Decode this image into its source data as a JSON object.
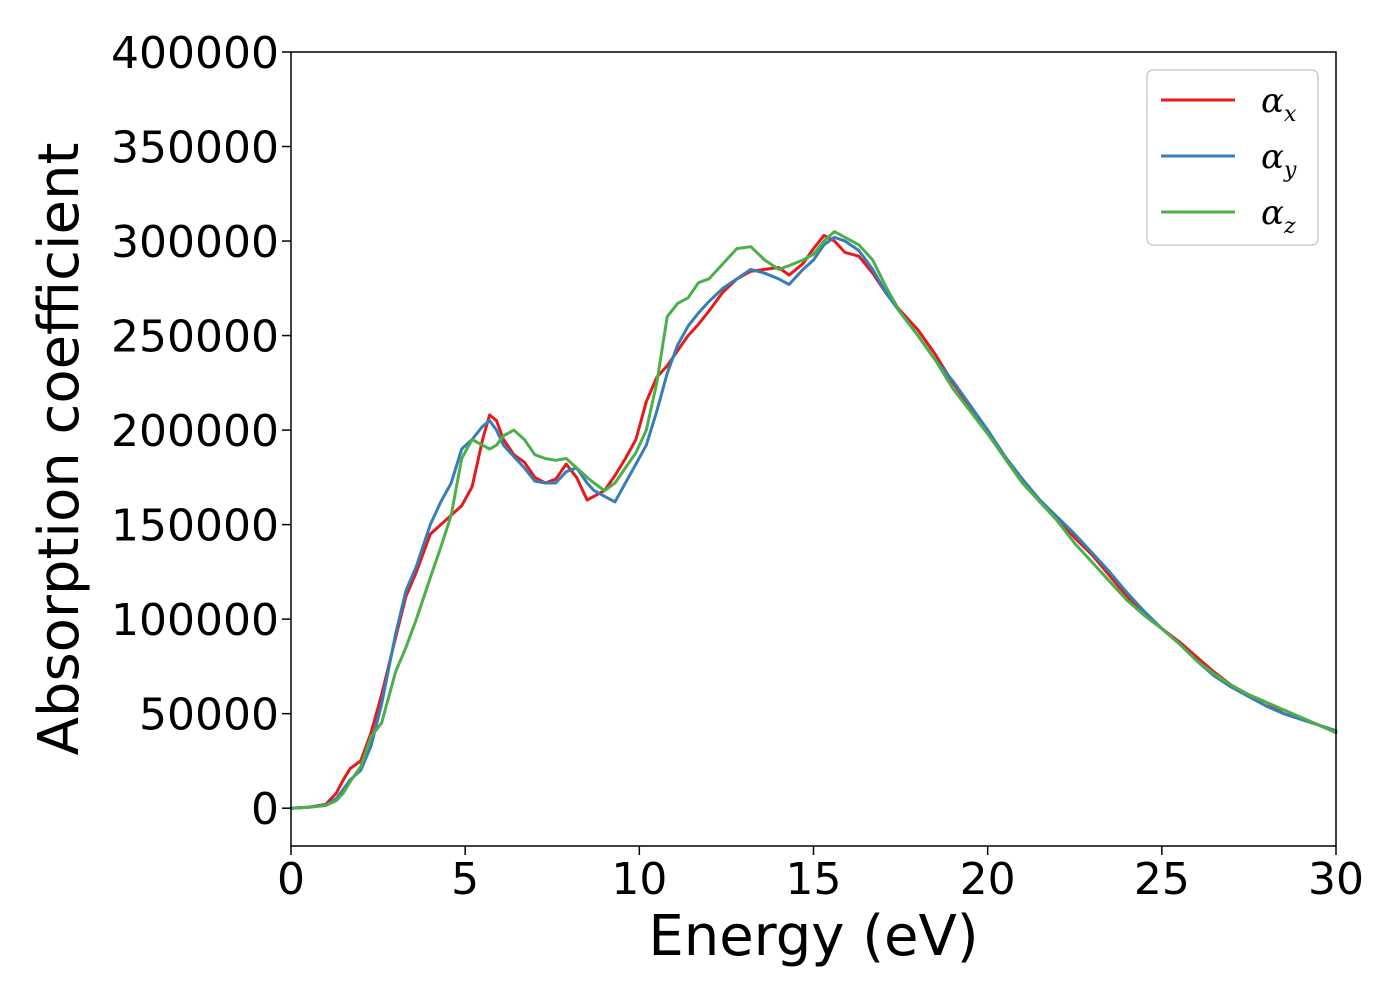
{
  "chart_data": {
    "type": "line",
    "xlabel": "Energy (eV)",
    "ylabel": "Absorption coefficient",
    "xlim": [
      0,
      30
    ],
    "ylim": [
      -20000,
      400000
    ],
    "xticks": [
      0,
      5,
      10,
      15,
      20,
      25,
      30
    ],
    "yticks": [
      0,
      50000,
      100000,
      150000,
      200000,
      250000,
      300000,
      350000,
      400000
    ],
    "grid": false,
    "legend_position": "top-right",
    "series": [
      {
        "name": "α_x",
        "legend_base": "α",
        "legend_sub": "x",
        "color": "#e41a1c",
        "x": [
          0,
          0.5,
          1.0,
          1.3,
          1.5,
          1.7,
          2.0,
          2.3,
          2.6,
          3.0,
          3.3,
          3.6,
          4.0,
          4.3,
          4.6,
          4.9,
          5.2,
          5.5,
          5.7,
          5.9,
          6.1,
          6.4,
          6.7,
          7.0,
          7.3,
          7.6,
          7.9,
          8.2,
          8.5,
          8.7,
          9.0,
          9.3,
          9.6,
          9.9,
          10.2,
          10.5,
          10.8,
          11.1,
          11.4,
          11.7,
          12.0,
          12.4,
          12.8,
          13.2,
          13.6,
          14.0,
          14.3,
          14.7,
          15.0,
          15.3,
          15.6,
          15.9,
          16.3,
          16.7,
          17.1,
          17.5,
          18.0,
          18.5,
          19.0,
          19.5,
          20.0,
          20.5,
          21.0,
          21.5,
          22.0,
          22.5,
          23.0,
          23.5,
          24.0,
          24.5,
          25.0,
          25.5,
          26.0,
          26.5,
          27.0,
          27.5,
          28.0,
          28.5,
          29.0,
          29.5,
          30.0
        ],
        "y": [
          0,
          500,
          2000,
          8000,
          15000,
          21000,
          25000,
          40000,
          60000,
          90000,
          112000,
          125000,
          145000,
          150000,
          155000,
          160000,
          170000,
          195000,
          208000,
          205000,
          195000,
          187000,
          183000,
          175000,
          172000,
          174000,
          182000,
          175000,
          163000,
          165000,
          168000,
          176000,
          185000,
          195000,
          215000,
          228000,
          234000,
          242000,
          250000,
          256000,
          263000,
          273000,
          280000,
          284000,
          285000,
          286000,
          282000,
          288000,
          296000,
          303000,
          300000,
          294000,
          292000,
          283000,
          272000,
          263000,
          253000,
          240000,
          225000,
          212000,
          200000,
          185000,
          172000,
          162000,
          153000,
          143000,
          134000,
          123000,
          112000,
          102000,
          95000,
          88000,
          80000,
          72000,
          65000,
          60000,
          56000,
          50000,
          47000,
          44000,
          40000
        ]
      },
      {
        "name": "α_y",
        "legend_base": "α",
        "legend_sub": "y",
        "color": "#377eb8",
        "x": [
          0,
          0.5,
          1.0,
          1.3,
          1.5,
          1.7,
          2.0,
          2.3,
          2.6,
          3.0,
          3.3,
          3.6,
          4.0,
          4.3,
          4.6,
          4.9,
          5.2,
          5.5,
          5.7,
          5.9,
          6.1,
          6.4,
          6.7,
          7.0,
          7.3,
          7.6,
          7.9,
          8.2,
          8.5,
          8.7,
          9.0,
          9.3,
          9.6,
          9.9,
          10.2,
          10.5,
          10.8,
          11.1,
          11.4,
          11.7,
          12.0,
          12.4,
          12.8,
          13.2,
          13.6,
          14.0,
          14.3,
          14.7,
          15.0,
          15.3,
          15.6,
          15.9,
          16.3,
          16.7,
          17.1,
          17.5,
          18.0,
          18.5,
          19.0,
          19.5,
          20.0,
          20.5,
          21.0,
          21.5,
          22.0,
          22.5,
          23.0,
          23.5,
          24.0,
          24.5,
          25.0,
          25.5,
          26.0,
          26.5,
          27.0,
          27.5,
          28.0,
          28.5,
          29.0,
          29.5,
          30.0
        ],
        "y": [
          0,
          500,
          1500,
          5000,
          10000,
          15000,
          20000,
          33000,
          55000,
          92000,
          115000,
          128000,
          150000,
          162000,
          172000,
          190000,
          195000,
          202000,
          205000,
          200000,
          192000,
          186000,
          180000,
          173000,
          172000,
          172000,
          178000,
          180000,
          172000,
          168000,
          165000,
          162000,
          172000,
          182000,
          192000,
          210000,
          230000,
          245000,
          255000,
          262000,
          268000,
          275000,
          280000,
          285000,
          283000,
          280000,
          277000,
          285000,
          290000,
          298000,
          302000,
          300000,
          295000,
          285000,
          272000,
          262000,
          250000,
          237000,
          226000,
          213000,
          200000,
          186000,
          174000,
          163000,
          154000,
          145000,
          135000,
          125000,
          114000,
          104000,
          95000,
          87000,
          78000,
          70000,
          64000,
          59000,
          54000,
          50000,
          47000,
          44000,
          41000
        ]
      },
      {
        "name": "α_z",
        "legend_base": "α",
        "legend_sub": "z",
        "color": "#4daf4a",
        "x": [
          0,
          0.5,
          1.0,
          1.3,
          1.5,
          1.7,
          2.0,
          2.3,
          2.6,
          3.0,
          3.3,
          3.6,
          4.0,
          4.3,
          4.6,
          4.9,
          5.2,
          5.5,
          5.7,
          5.9,
          6.1,
          6.4,
          6.7,
          7.0,
          7.3,
          7.6,
          7.9,
          8.2,
          8.5,
          8.7,
          9.0,
          9.3,
          9.6,
          9.9,
          10.2,
          10.5,
          10.8,
          11.1,
          11.4,
          11.7,
          12.0,
          12.4,
          12.8,
          13.2,
          13.6,
          14.0,
          14.3,
          14.7,
          15.0,
          15.3,
          15.6,
          15.9,
          16.3,
          16.7,
          17.1,
          17.5,
          18.0,
          18.5,
          19.0,
          19.5,
          20.0,
          20.5,
          21.0,
          21.5,
          22.0,
          22.5,
          23.0,
          23.5,
          24.0,
          24.5,
          25.0,
          25.5,
          26.0,
          26.5,
          27.0,
          27.5,
          28.0,
          28.5,
          29.0,
          29.5,
          30.0
        ],
        "y": [
          0,
          500,
          1500,
          4000,
          8000,
          14000,
          22000,
          38000,
          45000,
          72000,
          85000,
          100000,
          122000,
          138000,
          155000,
          185000,
          195000,
          192000,
          190000,
          192000,
          197000,
          200000,
          195000,
          187000,
          185000,
          184000,
          185000,
          180000,
          175000,
          172000,
          168000,
          172000,
          180000,
          188000,
          200000,
          225000,
          260000,
          267000,
          270000,
          278000,
          280000,
          288000,
          296000,
          297000,
          290000,
          285000,
          287000,
          290000,
          293000,
          300000,
          305000,
          302000,
          298000,
          290000,
          275000,
          262000,
          250000,
          237000,
          222000,
          210000,
          198000,
          185000,
          172000,
          162000,
          152000,
          140000,
          130000,
          120000,
          110000,
          102000,
          95000,
          87000,
          78000,
          71000,
          65000,
          60000,
          56000,
          52000,
          48000,
          44000,
          40000
        ]
      }
    ]
  }
}
